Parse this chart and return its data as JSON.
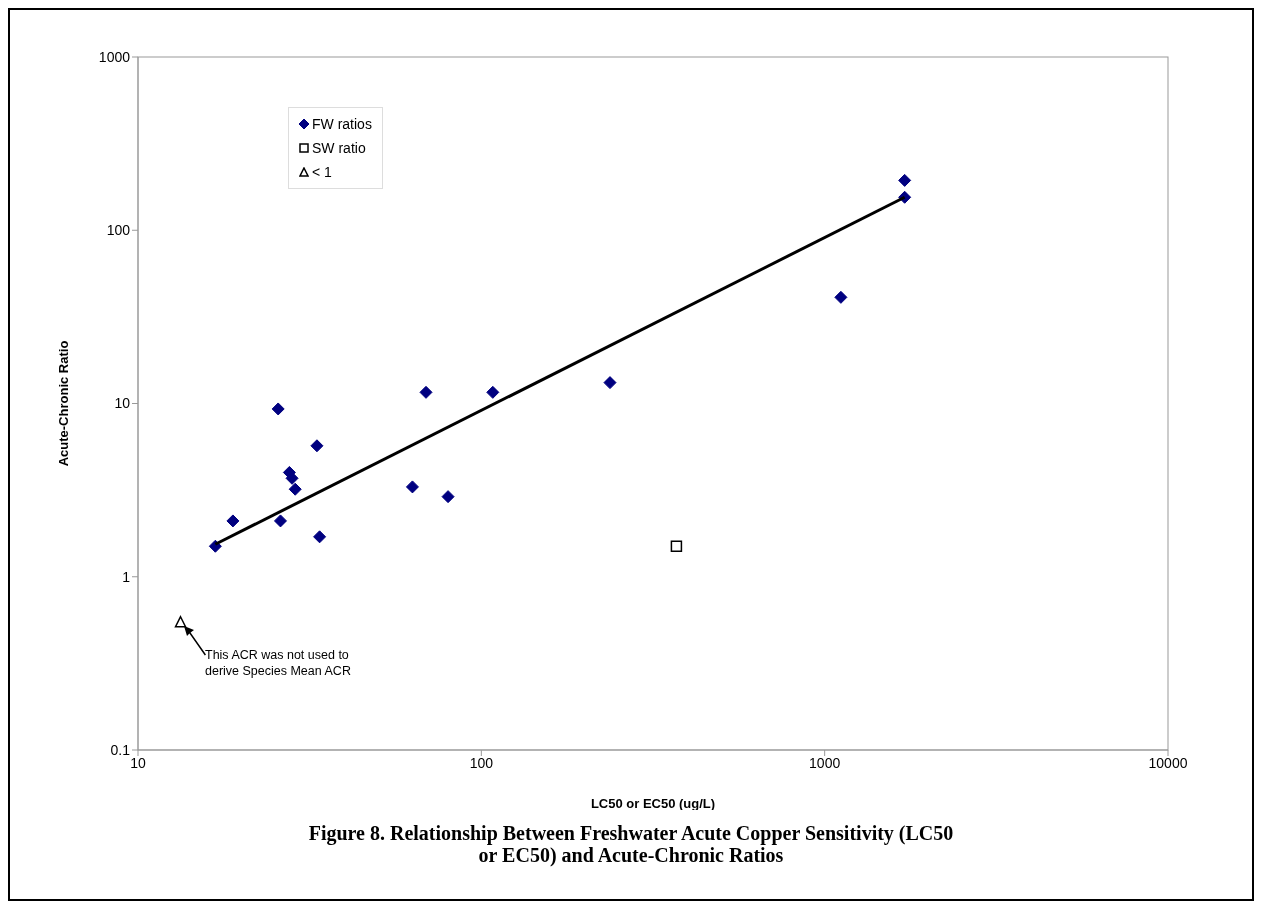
{
  "chart_data": {
    "type": "scatter",
    "title": "Figure 8. Relationship Between Freshwater Acute Copper Sensitivity (LC50 or EC50) and Acute-Chronic Ratios",
    "xlabel": "LC50 or EC50 (ug/L)",
    "ylabel": "Acute-Chronic Ratio",
    "log": "xy",
    "xlim": [
      10,
      10000
    ],
    "xticks": [
      10,
      100,
      1000,
      10000
    ],
    "ylim": [
      0.1,
      1000
    ],
    "yticks": [
      0.1,
      1,
      10,
      100,
      1000
    ],
    "legend": "top left",
    "series": [
      {
        "name": "FW ratios",
        "color": "#000080",
        "marker": "diamond",
        "x": [
          16.8,
          18.9,
          25.6,
          26,
          27.6,
          28.1,
          28.7,
          33.2,
          33.8,
          63,
          69,
          80,
          108,
          237,
          1115,
          1710,
          1710
        ],
        "values": [
          1.5,
          2.1,
          9.3,
          2.1,
          4.0,
          3.7,
          3.2,
          5.7,
          1.7,
          3.3,
          11.6,
          2.9,
          11.6,
          13.2,
          41,
          194,
          155
        ]
      },
      {
        "name": "SW ratio",
        "color": "#000000",
        "marker": "square",
        "x": [
          370
        ],
        "values": [
          1.5
        ]
      },
      {
        "name": "< 1",
        "color": "#000000",
        "marker": "triangle",
        "x": [
          13.3
        ],
        "values": [
          0.55
        ]
      },
      {
        "type": "line",
        "color": "#000000",
        "marker": "none",
        "line_style": "solid",
        "x": [
          16.8,
          1710
        ],
        "values": [
          1.54,
          155
        ]
      }
    ],
    "annotations": [
      "This ACR was not used to derive Species Mean ACR"
    ]
  }
}
